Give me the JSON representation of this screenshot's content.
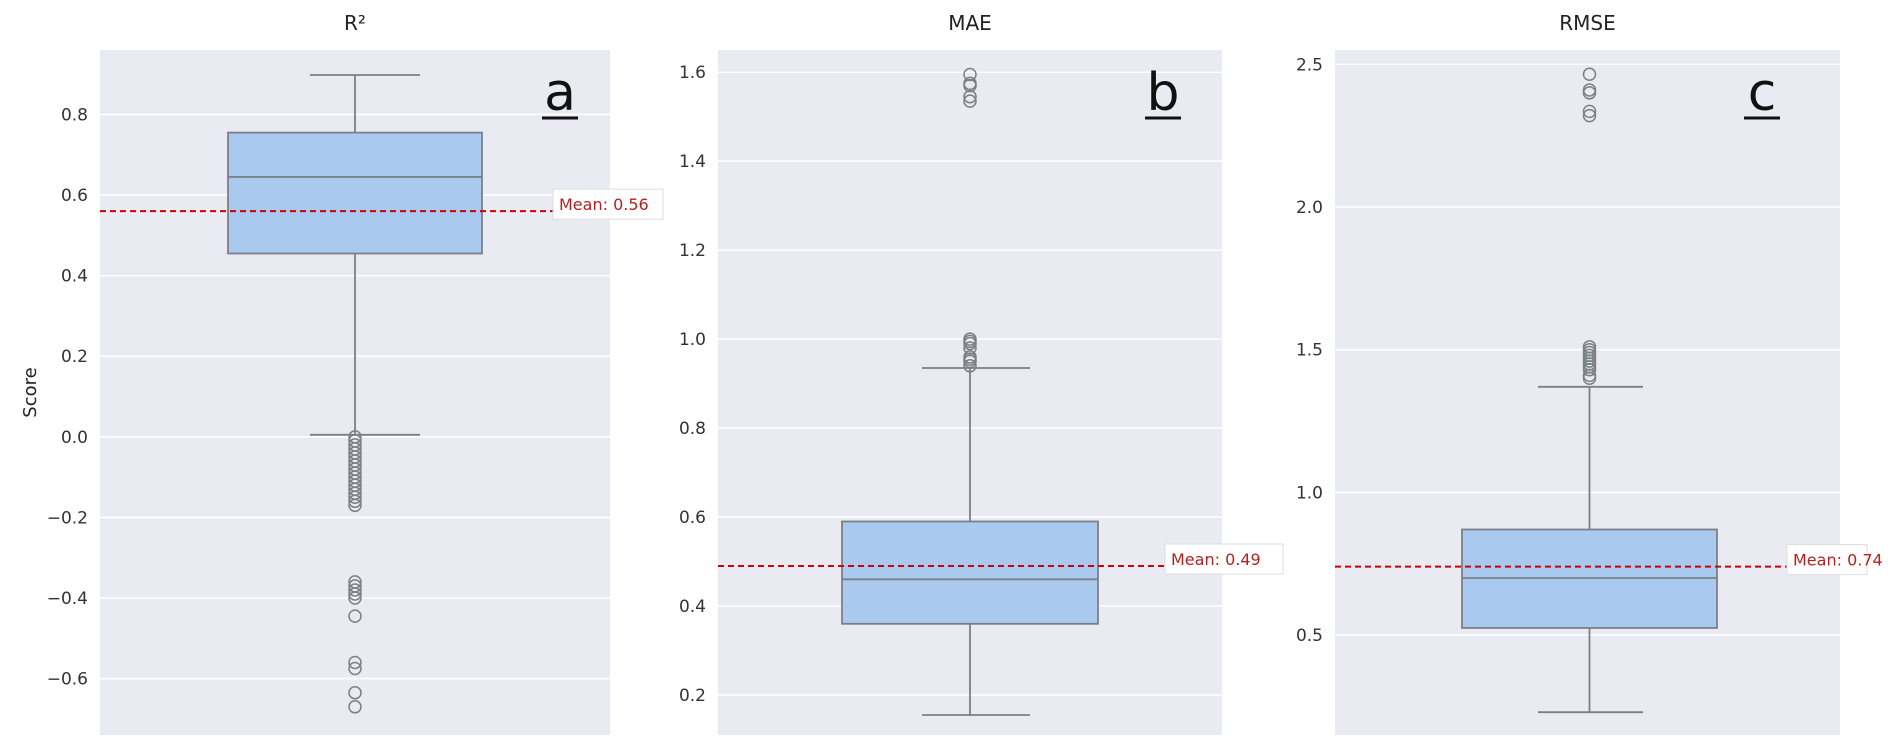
{
  "chart_data": [
    {
      "type": "box",
      "title": "R²",
      "panel_label": "a",
      "ylabel": "Score",
      "ylim": [
        -0.74,
        0.96
      ],
      "yticks": [
        -0.6,
        -0.4,
        -0.2,
        0.0,
        0.2,
        0.4,
        0.6,
        0.8
      ],
      "ytick_labels": [
        "−0.6",
        "−0.4",
        "−0.2",
        "0.0",
        "0.2",
        "0.4",
        "0.6",
        "0.8"
      ],
      "box": {
        "whisker_low": 0.005,
        "q1": 0.455,
        "median": 0.645,
        "q3": 0.755,
        "whisker_high": 0.898
      },
      "outliers": [
        0.0,
        -0.01,
        -0.02,
        -0.03,
        -0.04,
        -0.05,
        -0.06,
        -0.07,
        -0.08,
        -0.09,
        -0.1,
        -0.11,
        -0.12,
        -0.13,
        -0.14,
        -0.15,
        -0.16,
        -0.17,
        -0.36,
        -0.37,
        -0.38,
        -0.39,
        -0.4,
        -0.445,
        -0.56,
        -0.575,
        -0.635,
        -0.67
      ],
      "mean": 0.56,
      "mean_label": "Mean: 0.56",
      "grid": true,
      "box_color": "#a9c9ef",
      "line_color": "#7b8087",
      "mean_color": "#cc0000"
    },
    {
      "type": "box",
      "title": "MAE",
      "panel_label": "b",
      "ylabel": "",
      "ylim": [
        0.11,
        1.65
      ],
      "yticks": [
        0.2,
        0.4,
        0.6,
        0.8,
        1.0,
        1.2,
        1.4,
        1.6
      ],
      "ytick_labels": [
        "0.2",
        "0.4",
        "0.6",
        "0.8",
        "1.0",
        "1.2",
        "1.4",
        "1.6"
      ],
      "box": {
        "whisker_low": 0.155,
        "q1": 0.36,
        "median": 0.46,
        "q3": 0.59,
        "whisker_high": 0.935
      },
      "outliers": [
        0.94,
        0.95,
        0.955,
        0.96,
        0.98,
        0.99,
        0.995,
        1.0,
        1.535,
        1.545,
        1.57,
        1.575,
        1.595
      ],
      "mean": 0.49,
      "mean_label": "Mean: 0.49",
      "grid": true,
      "box_color": "#a9c9ef",
      "line_color": "#7b8087",
      "mean_color": "#cc0000"
    },
    {
      "type": "box",
      "title": "RMSE",
      "panel_label": "c",
      "ylabel": "",
      "ylim": [
        0.15,
        2.55
      ],
      "yticks": [
        0.5,
        1.0,
        1.5,
        2.0,
        2.5
      ],
      "ytick_labels": [
        "0.5",
        "1.0",
        "1.5",
        "2.0",
        "2.5"
      ],
      "box": {
        "whisker_low": 0.23,
        "q1": 0.525,
        "median": 0.7,
        "q3": 0.87,
        "whisker_high": 1.37
      },
      "outliers": [
        1.4,
        1.41,
        1.43,
        1.44,
        1.45,
        1.46,
        1.47,
        1.48,
        1.49,
        1.5,
        1.51,
        2.32,
        2.335,
        2.4,
        2.41,
        2.465
      ],
      "mean": 0.74,
      "mean_label": "Mean: 0.74",
      "grid": true,
      "box_color": "#a9c9ef",
      "line_color": "#7b8087",
      "mean_color": "#cc0000"
    }
  ]
}
